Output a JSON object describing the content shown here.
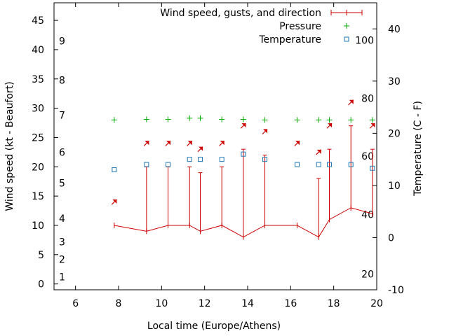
{
  "chart_data": {
    "type": "line",
    "xlabel": "Local time (Europe/Athens)",
    "ylabel_left": "Wind speed (kt - Beaufort)",
    "ylabel_right": "Temperature (C - F)",
    "xlim": [
      5,
      20
    ],
    "ylim_left": [
      -1,
      48
    ],
    "ylim_right": [
      -10,
      45
    ],
    "x_ticks": [
      6,
      8,
      10,
      12,
      14,
      16,
      18,
      20
    ],
    "y_left_ticks": [
      0,
      5,
      10,
      15,
      20,
      25,
      30,
      35,
      40,
      45
    ],
    "y_right_ticks": [
      -10,
      0,
      10,
      20,
      30,
      40
    ],
    "beaufort_labels": [
      {
        "label": "1",
        "y": 1.2
      },
      {
        "label": "2",
        "y": 4.2
      },
      {
        "label": "3",
        "y": 7.2
      },
      {
        "label": "4",
        "y": 11.2
      },
      {
        "label": "5",
        "y": 17.2
      },
      {
        "label": "6",
        "y": 22.5
      },
      {
        "label": "7",
        "y": 28.8
      },
      {
        "label": "8",
        "y": 34.8
      },
      {
        "label": "9",
        "y": 41.5
      }
    ],
    "fahrenheit_labels": [
      {
        "label": "20",
        "y": -7
      },
      {
        "label": "40",
        "y": 4.4
      },
      {
        "label": "60",
        "y": 15.6
      },
      {
        "label": "80",
        "y": 26.7
      },
      {
        "label": "100",
        "y": 37.8
      }
    ],
    "legend_position": "top-right",
    "series": [
      {
        "name": "Wind speed, gusts, and direction",
        "color": "#cc0000",
        "x": [
          7.8,
          9.3,
          10.3,
          11.3,
          11.8,
          12.8,
          13.8,
          14.8,
          16.3,
          17.3,
          17.8,
          18.8,
          19.8
        ],
        "speed": [
          10,
          9,
          10,
          10,
          9,
          10,
          8,
          10,
          10,
          8,
          11,
          13,
          12
        ],
        "gust": [
          null,
          20,
          20,
          20,
          19,
          20,
          23,
          22,
          null,
          18,
          23,
          27,
          23
        ],
        "arrow_y": [
          14,
          24,
          24,
          24,
          23,
          24,
          27,
          26,
          24,
          22.5,
          27,
          31,
          27
        ],
        "arrow_dir_deg": [
          45,
          45,
          45,
          45,
          45,
          45,
          45,
          45,
          45,
          45,
          45,
          45,
          45
        ]
      },
      {
        "name": "Pressure",
        "color": "#00aa00",
        "x": [
          7.8,
          9.3,
          10.3,
          11.3,
          11.8,
          12.8,
          13.8,
          14.8,
          16.3,
          17.3,
          17.8,
          18.8,
          19.8
        ],
        "y": [
          28,
          28.1,
          28.1,
          28.3,
          28.3,
          28.1,
          28.1,
          28,
          28,
          28,
          28,
          28,
          28
        ]
      },
      {
        "name": "Temperature",
        "color": "#1f77b4",
        "x": [
          7.8,
          9.3,
          10.3,
          11.3,
          11.8,
          12.8,
          13.8,
          14.8,
          16.3,
          17.3,
          17.8,
          18.8,
          19.8
        ],
        "y": [
          13,
          14,
          14,
          15,
          15,
          15,
          16,
          15,
          14,
          14,
          14,
          14,
          13.3
        ]
      }
    ]
  }
}
